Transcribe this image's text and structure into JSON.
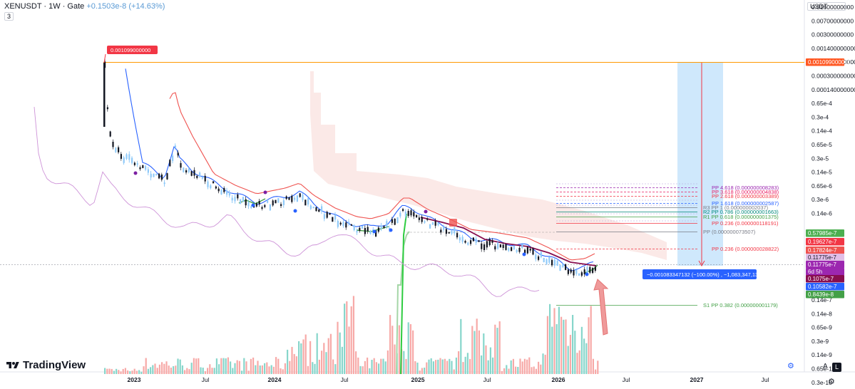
{
  "header": {
    "symbol": "XENUSDT · 1W · Gate",
    "change": "+0.1503e-8 (+14.63%)",
    "indicator_count": "3"
  },
  "currency_label": "USDT",
  "tradingview_logo_text": "TradingView",
  "scale_buttons": {
    "auto": "A",
    "log": "L"
  },
  "chart_data": {
    "type": "candlestick",
    "y_scale": "log",
    "price_axis_labels": [
      "0.01600000000",
      "0.00700000000",
      "0.00300000000",
      "0.001400000000",
      "0.000650000000",
      "0.000300000000",
      "0.000140000000",
      "0.65e-4",
      "0.3e-4",
      "0.14e-4",
      "0.65e-5",
      "0.3e-5",
      "0.14e-5",
      "0.65e-6",
      "0.3e-6",
      "0.14e-6",
      "0.14e-7",
      "0.14e-8",
      "0.65e-9",
      "0.3e-9",
      "0.14e-9",
      "0.65e-10",
      "0.3e-10"
    ],
    "time_axis_labels": [
      "2023",
      "Jul",
      "2024",
      "Jul",
      "2025",
      "Jul",
      "2026",
      "Jul",
      "2027",
      "Jul"
    ],
    "time_axis_bold": [
      "2024",
      "2025",
      "2026",
      "2027"
    ],
    "price_tags": [
      {
        "text": "0.001099000000",
        "color": "#ff5722"
      },
      {
        "text": "0.57985e-7",
        "color": "#4caf50"
      },
      {
        "text": "0.19627e-7",
        "color": "#f23645"
      },
      {
        "text": "0.17824e-7",
        "color": "#ef5350"
      },
      {
        "text": "0.11775e-7",
        "color": "#e1bee7"
      },
      {
        "text": "0.11775e-7",
        "color": "#9c27b0"
      },
      {
        "text": "6d 5h",
        "color": "#9c27b0"
      },
      {
        "text": "0.1075e-7",
        "color": "#880e4f"
      },
      {
        "text": "0.10582e-7",
        "color": "#2962ff"
      },
      {
        "text": "0.8439e-8",
        "color": "#43a047"
      }
    ],
    "high_marker_label": "0.001099000000",
    "measure_label": "−0.001083347132 (−100.00%) , −1,083,347,132",
    "pivot_labels": [
      {
        "text": "PP 4.618 (0.000000008283)",
        "color": "#9c27b0"
      },
      {
        "text": "PP 3.618 (0.000000004838)",
        "color": "#e91e63"
      },
      {
        "text": "PP 2.618 (0.000000003389)",
        "color": "#f23645"
      },
      {
        "text": "PP 1.618 (0.000000002587)",
        "color": "#2962ff"
      },
      {
        "text": "R3 PP 1 (0.000000002037)",
        "color": "#787b86"
      },
      {
        "text": "R2 PP 0.786 (0.000000001663)",
        "color": "#00897b"
      },
      {
        "text": "R1 PP 0.618 (0.000000001375)",
        "color": "#43a047"
      },
      {
        "text": "PP 0.236 (0.000000118191)",
        "color": "#f23645"
      },
      {
        "text": "PP (0.000000073507)",
        "color": "#787b86"
      },
      {
        "text": "PP 0.236 (0.000000028822)",
        "color": "#f23645"
      },
      {
        "text": "S1 PP 0.382 (0.000000001179)",
        "color": "#43a047"
      }
    ],
    "all_time_high": 0.001099,
    "last_price": 1.1775e-08,
    "measure_change_pct": -100.0
  }
}
